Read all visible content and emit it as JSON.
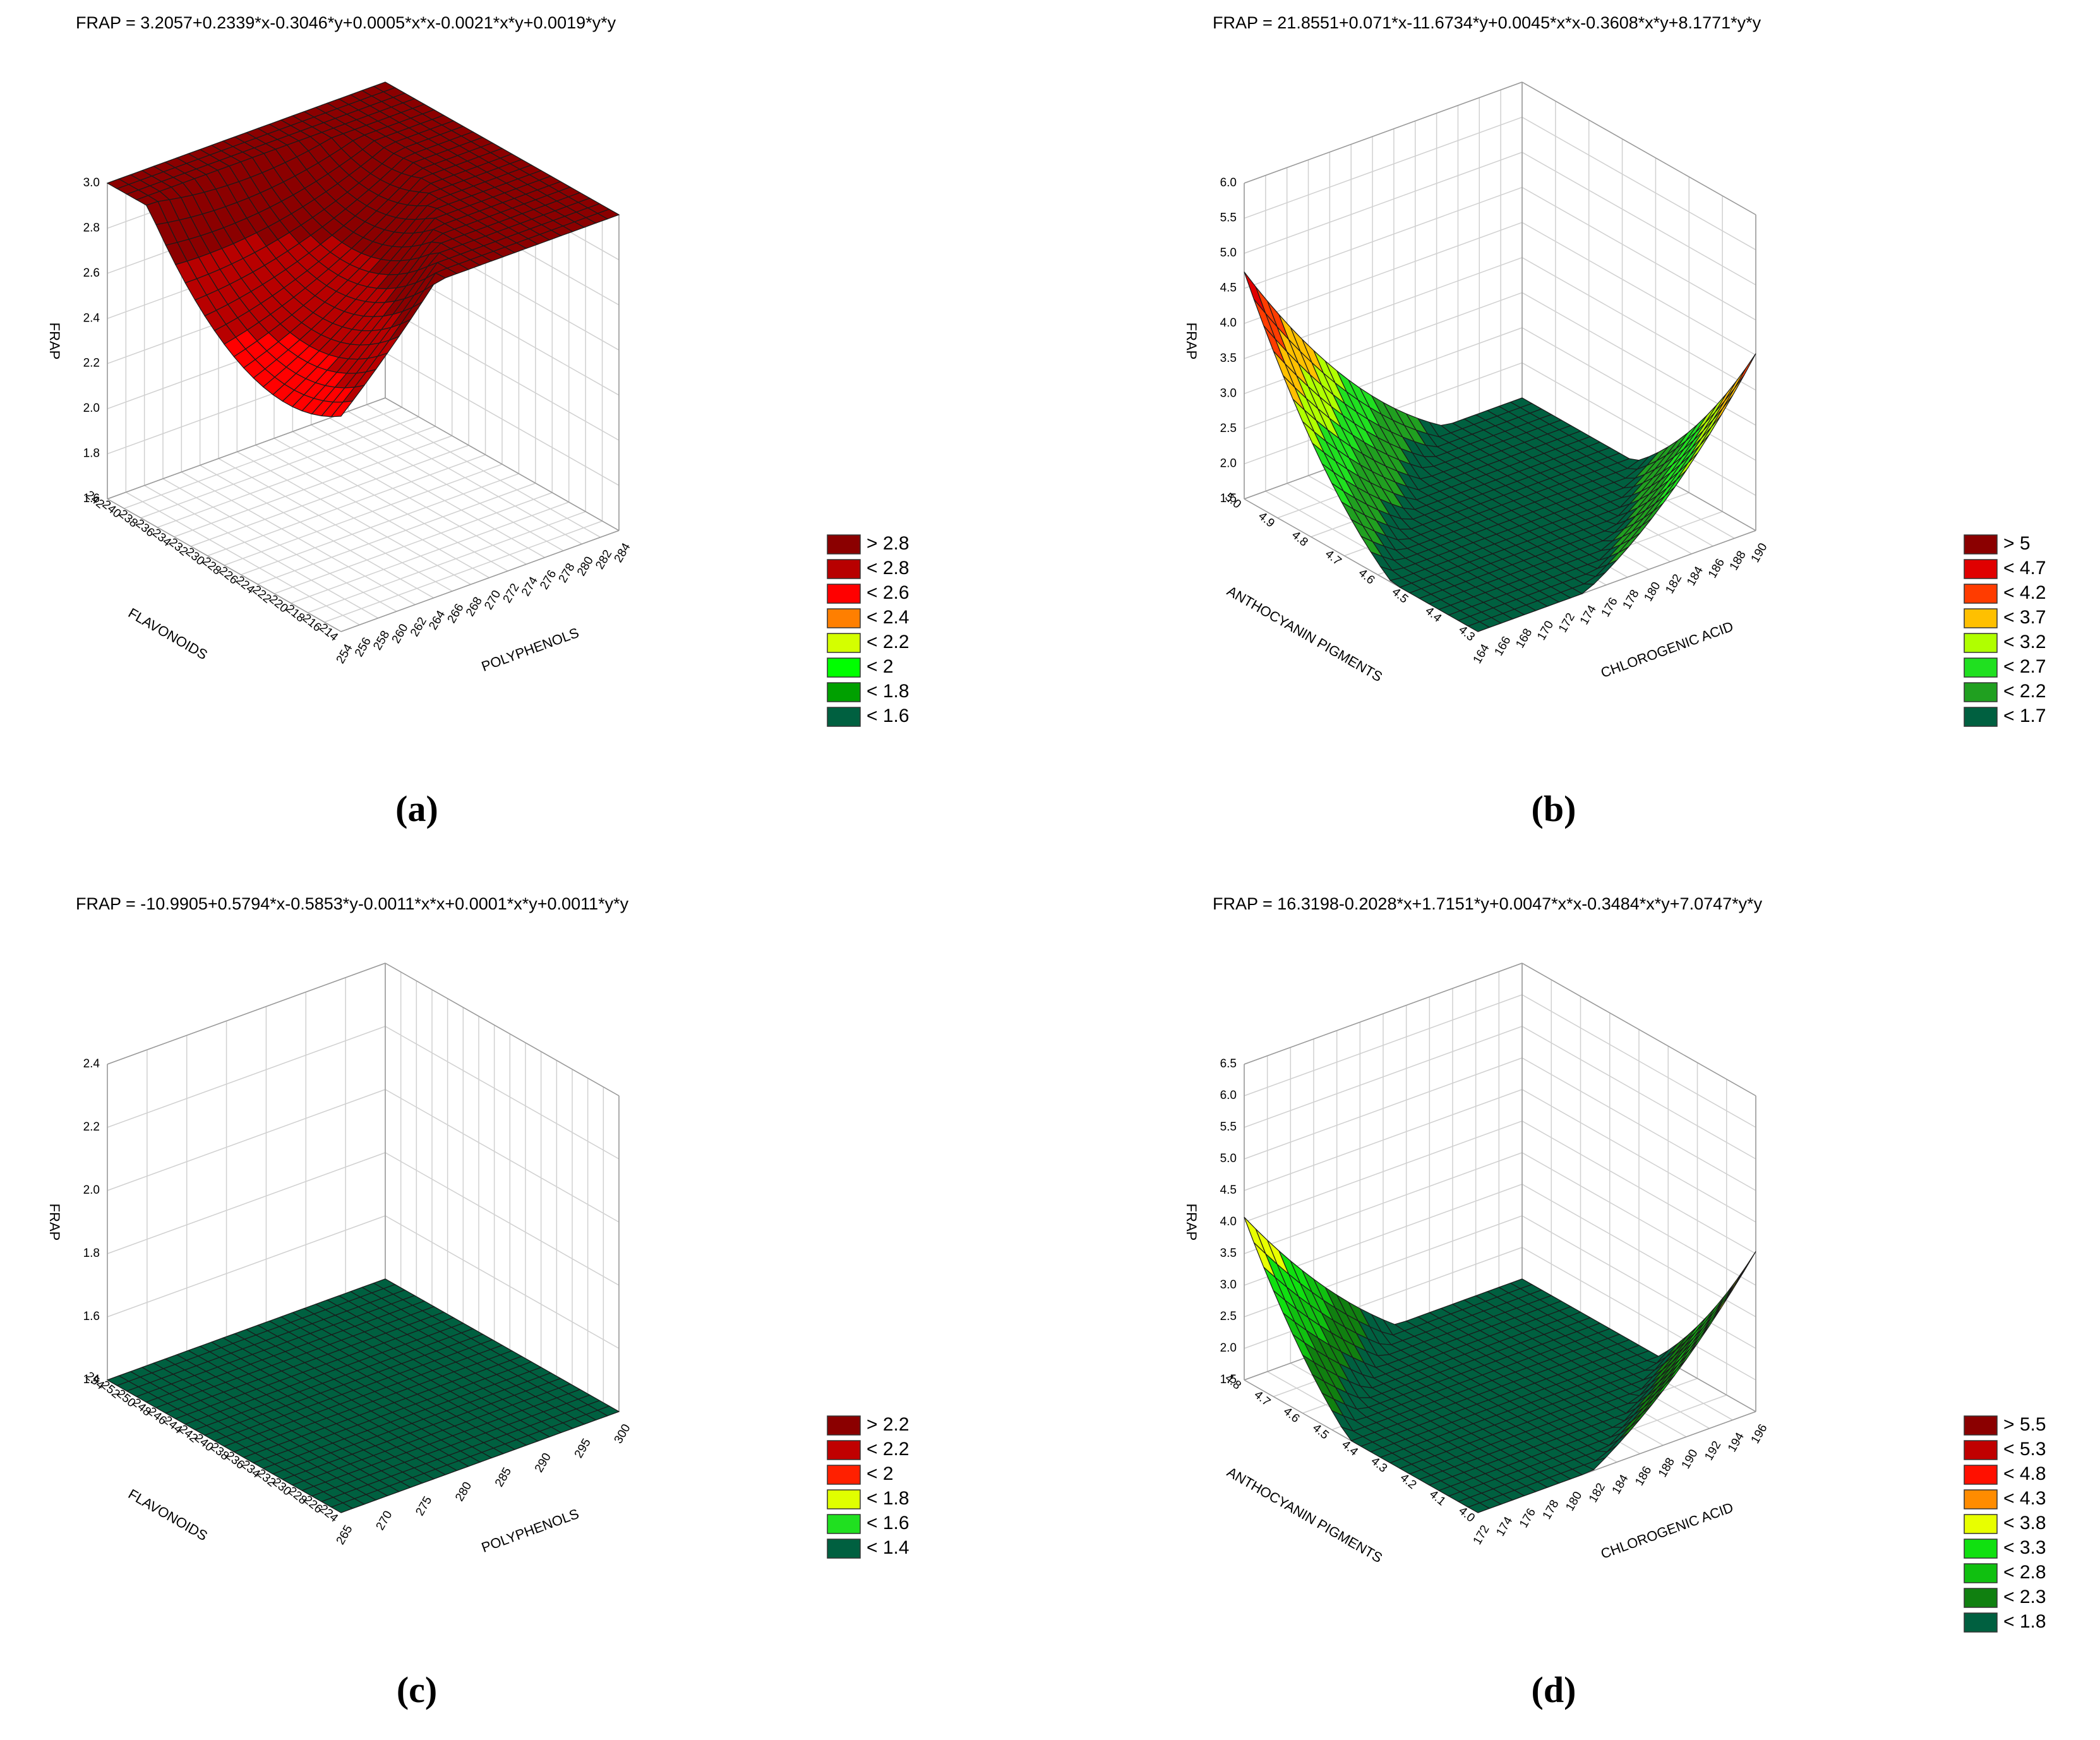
{
  "chart_data": [
    {
      "type": "surface3d",
      "title": "FRAP = 3.2057+0.2339*x-0.3046*y+0.0005*x*x-0.0021*x*y+0.0019*y*y",
      "panel_label": "(a)",
      "xlabel": "POLYPHENOLS",
      "ylabel": "FLAVONOIDS",
      "zlabel": "FRAP",
      "xlim": [
        254,
        284
      ],
      "ylim": [
        214,
        242
      ],
      "zlim": [
        1.6,
        3.0
      ],
      "xticks": [
        254,
        256,
        258,
        260,
        262,
        264,
        266,
        268,
        270,
        272,
        274,
        276,
        278,
        280,
        282,
        284
      ],
      "yticks": [
        214,
        216,
        218,
        220,
        222,
        224,
        226,
        228,
        230,
        232,
        234,
        236,
        238,
        240,
        242
      ],
      "zticks": [
        1.6,
        1.8,
        {
          "value": 2,
          "label": "2.0"
        },
        2.2,
        2.4,
        2.6,
        2.8,
        {
          "value": 3,
          "label": "3.0"
        }
      ],
      "legend": [
        {
          "value": 2.8,
          "label": "> 2.8",
          "color": "#8b0000"
        },
        {
          "value": 2.8,
          "label": "< 2.8",
          "color": "#b80000"
        },
        {
          "value": 2.6,
          "label": "< 2.6",
          "color": "#ff0000"
        },
        {
          "value": 2.4,
          "label": "< 2.4",
          "color": "#ff7f00"
        },
        {
          "value": 2.2,
          "label": "< 2.2",
          "color": "#d4ff00"
        },
        {
          "value": 2,
          "label": "< 2",
          "color": "#00ff00"
        },
        {
          "value": 1.8,
          "label": "< 1.8",
          "color": "#00a000"
        },
        {
          "value": 1.6,
          "label": "< 1.6",
          "color": "#006040"
        }
      ]
    },
    {
      "type": "surface3d",
      "title": "FRAP = 21.8551+0.071*x-11.6734*y+0.0045*x*x-0.3608*x*y+8.1771*y*y",
      "panel_label": "(b)",
      "xlabel": "CHLOROGENIC ACID",
      "ylabel": "ANTHOCYANIN PIGMENTS",
      "zlabel": "FRAP",
      "xlim": [
        164,
        190
      ],
      "ylim": [
        4.3,
        5.0
      ],
      "zlim": [
        1.5,
        6.0
      ],
      "xticks": [
        164,
        166,
        168,
        170,
        172,
        174,
        176,
        178,
        180,
        182,
        184,
        186,
        188,
        190
      ],
      "yticks": [
        4.3,
        4.4,
        4.5,
        4.6,
        4.7,
        4.8,
        4.9,
        {
          "value": 5,
          "label": "5.0"
        }
      ],
      "zticks": [
        1.5,
        {
          "value": 2,
          "label": "2.0"
        },
        2.5,
        {
          "value": 3,
          "label": "3.0"
        },
        3.5,
        {
          "value": 4,
          "label": "4.0"
        },
        4.5,
        {
          "value": 5,
          "label": "5.0"
        },
        5.5,
        {
          "value": 6,
          "label": "6.0"
        }
      ],
      "legend": [
        {
          "value": 5,
          "label": "> 5",
          "color": "#8b0000"
        },
        {
          "value": 4.7,
          "label": "< 4.7",
          "color": "#e00000"
        },
        {
          "value": 4.2,
          "label": "< 4.2",
          "color": "#ff3c00"
        },
        {
          "value": 3.7,
          "label": "< 3.7",
          "color": "#ffc000"
        },
        {
          "value": 3.2,
          "label": "< 3.2",
          "color": "#b0ff00"
        },
        {
          "value": 2.7,
          "label": "< 2.7",
          "color": "#20e020"
        },
        {
          "value": 2.2,
          "label": "< 2.2",
          "color": "#20a020"
        },
        {
          "value": 1.7,
          "label": "< 1.7",
          "color": "#006040"
        }
      ]
    },
    {
      "type": "surface3d",
      "title": "FRAP = -10.9905+0.5794*x-0.5853*y-0.0011*x*x+0.0001*x*y+0.0011*y*y",
      "panel_label": "(c)",
      "xlabel": "POLYPHENOLS",
      "ylabel": "FLAVONOIDS",
      "zlabel": "FRAP",
      "xlim": [
        265,
        300
      ],
      "ylim": [
        224,
        254
      ],
      "zlim": [
        1.4,
        2.4
      ],
      "xticks": [
        265,
        270,
        275,
        280,
        285,
        290,
        295,
        300
      ],
      "yticks": [
        224,
        226,
        228,
        230,
        232,
        234,
        236,
        238,
        240,
        242,
        244,
        246,
        248,
        250,
        252,
        254
      ],
      "zticks": [
        1.4,
        1.6,
        1.8,
        {
          "value": 2,
          "label": "2.0"
        },
        2.2,
        2.4
      ],
      "legend": [
        {
          "value": 2.2,
          "label": "> 2.2",
          "color": "#8b0000"
        },
        {
          "value": 2.2,
          "label": "< 2.2",
          "color": "#c00000"
        },
        {
          "value": 2,
          "label": "< 2",
          "color": "#ff2000"
        },
        {
          "value": 1.8,
          "label": "< 1.8",
          "color": "#e0ff00"
        },
        {
          "value": 1.6,
          "label": "< 1.6",
          "color": "#20e020"
        },
        {
          "value": 1.4,
          "label": "< 1.4",
          "color": "#006040"
        }
      ]
    },
    {
      "type": "surface3d",
      "title": "FRAP = 16.3198-0.2028*x+1.7151*y+0.0047*x*x-0.3484*x*y+7.0747*y*y",
      "panel_label": "(d)",
      "xlabel": "CHLOROGENIC ACID",
      "ylabel": "ANTHOCYANIN PIGMENTS",
      "zlabel": "FRAP",
      "xlim": [
        172,
        196
      ],
      "ylim": [
        4.0,
        4.8
      ],
      "zlim": [
        1.5,
        6.5
      ],
      "xticks": [
        172,
        174,
        176,
        178,
        180,
        182,
        184,
        186,
        188,
        190,
        192,
        194,
        196
      ],
      "yticks": [
        {
          "value": 4,
          "label": "4.0"
        },
        4.1,
        4.2,
        4.3,
        4.4,
        4.5,
        4.6,
        4.7,
        4.8
      ],
      "zticks": [
        1.5,
        {
          "value": 2,
          "label": "2.0"
        },
        2.5,
        {
          "value": 3,
          "label": "3.0"
        },
        3.5,
        {
          "value": 4,
          "label": "4.0"
        },
        4.5,
        {
          "value": 5,
          "label": "5.0"
        },
        5.5,
        {
          "value": 6,
          "label": "6.0"
        },
        6.5
      ],
      "legend": [
        {
          "value": 5.5,
          "label": "> 5.5",
          "color": "#8b0000"
        },
        {
          "value": 5.3,
          "label": "< 5.3",
          "color": "#c00000"
        },
        {
          "value": 4.8,
          "label": "< 4.8",
          "color": "#ff1000"
        },
        {
          "value": 4.3,
          "label": "< 4.3",
          "color": "#ff8c00"
        },
        {
          "value": 3.8,
          "label": "< 3.8",
          "color": "#e8ff00"
        },
        {
          "value": 3.3,
          "label": "< 3.3",
          "color": "#10e010"
        },
        {
          "value": 2.8,
          "label": "< 2.8",
          "color": "#10c010"
        },
        {
          "value": 2.3,
          "label": "< 2.3",
          "color": "#108010"
        },
        {
          "value": 1.8,
          "label": "< 1.8",
          "color": "#006040"
        }
      ]
    }
  ]
}
